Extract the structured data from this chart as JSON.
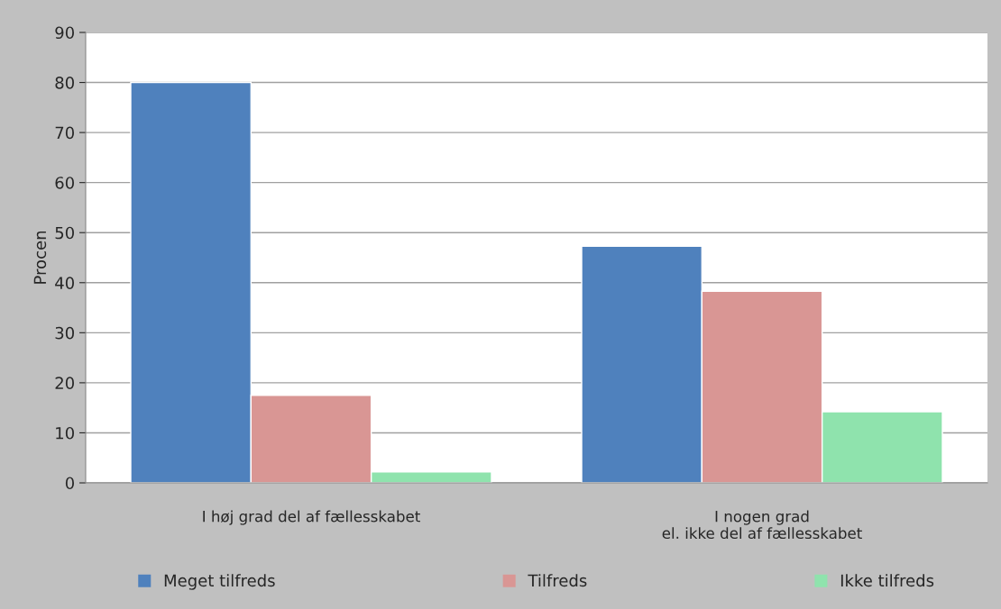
{
  "chart_data": {
    "type": "bar",
    "ylabel": "Procen",
    "categories": [
      "I høj grad del af fællesskabet",
      "I nogen grad\nel. ikke del af fællesskabet"
    ],
    "series": [
      {
        "name": "Meget tilfreds",
        "color": "#4f81bd",
        "values": [
          80,
          47.3
        ]
      },
      {
        "name": "Tilfreds",
        "color": "#d99694",
        "values": [
          17.5,
          38.3
        ]
      },
      {
        "name": "Ikke tilfreds",
        "color": "#8fe3ad",
        "values": [
          2.2,
          14.2
        ]
      }
    ],
    "ylim": [
      0,
      90
    ],
    "yticks": [
      0,
      10,
      20,
      30,
      40,
      50,
      60,
      70,
      80,
      90
    ],
    "grid": "y",
    "legend": "bottom"
  }
}
